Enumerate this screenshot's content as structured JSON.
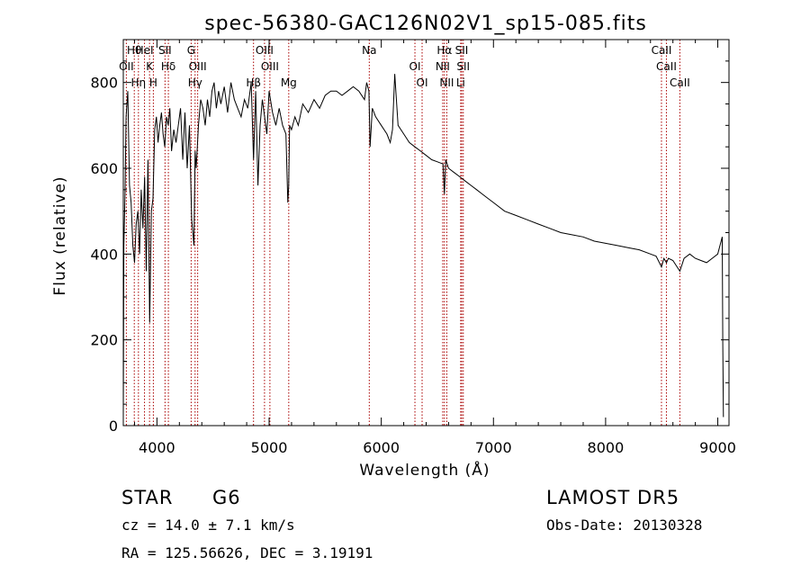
{
  "chart_data": {
    "type": "line",
    "title": "spec-56380-GAC126N02V1_sp15-085.fits",
    "xlabel": "Wavelength (Å)",
    "ylabel": "Flux (relative)",
    "xlim": [
      3700,
      9100
    ],
    "ylim": [
      0,
      900
    ],
    "xticks": [
      4000,
      5000,
      6000,
      7000,
      8000,
      9000
    ],
    "yticks": [
      0,
      200,
      400,
      600,
      800
    ],
    "grid": false,
    "series": [
      {
        "x": [
          3700,
          3705,
          3715,
          3725,
          3740,
          3755,
          3770,
          3785,
          3800,
          3815,
          3830,
          3845,
          3860,
          3875,
          3890,
          3905,
          3920,
          3935,
          3950,
          3965,
          3980,
          3995,
          4010,
          4025,
          4040,
          4055,
          4070,
          4085,
          4100,
          4115,
          4130,
          4150,
          4170,
          4190,
          4210,
          4230,
          4250,
          4270,
          4290,
          4310,
          4330,
          4340,
          4350,
          4370,
          4390,
          4410,
          4430,
          4450,
          4470,
          4490,
          4510,
          4530,
          4550,
          4570,
          4600,
          4630,
          4660,
          4690,
          4720,
          4750,
          4780,
          4810,
          4840,
          4861,
          4880,
          4900,
          4920,
          4940,
          4960,
          4980,
          5000,
          5030,
          5060,
          5090,
          5120,
          5150,
          5167,
          5175,
          5183,
          5200,
          5230,
          5260,
          5300,
          5350,
          5400,
          5450,
          5500,
          5550,
          5600,
          5650,
          5700,
          5750,
          5800,
          5850,
          5870,
          5890,
          5900,
          5920,
          5950,
          6000,
          6050,
          6080,
          6100,
          6120,
          6150,
          6200,
          6250,
          6300,
          6350,
          6400,
          6450,
          6500,
          6550,
          6563,
          6575,
          6600,
          6650,
          6700,
          6750,
          6800,
          6850,
          6900,
          6950,
          7000,
          7100,
          7200,
          7300,
          7400,
          7500,
          7600,
          7700,
          7800,
          7900,
          8000,
          8100,
          8200,
          8300,
          8400,
          8450,
          8498,
          8520,
          8542,
          8560,
          8600,
          8662,
          8700,
          8750,
          8800,
          8850,
          8900,
          8950,
          9000,
          9020,
          9040,
          9045,
          9050
        ],
        "y": [
          20,
          420,
          540,
          720,
          780,
          560,
          520,
          420,
          380,
          470,
          500,
          400,
          550,
          460,
          580,
          360,
          620,
          240,
          500,
          530,
          690,
          720,
          660,
          700,
          730,
          680,
          650,
          720,
          700,
          740,
          640,
          690,
          660,
          700,
          740,
          620,
          730,
          600,
          700,
          480,
          420,
          640,
          600,
          700,
          760,
          740,
          700,
          760,
          720,
          780,
          800,
          740,
          780,
          750,
          790,
          730,
          800,
          760,
          740,
          720,
          760,
          740,
          800,
          620,
          780,
          560,
          700,
          760,
          720,
          680,
          780,
          730,
          700,
          740,
          700,
          680,
          520,
          560,
          700,
          690,
          720,
          700,
          750,
          730,
          760,
          740,
          770,
          780,
          780,
          770,
          780,
          790,
          780,
          760,
          800,
          780,
          650,
          740,
          720,
          700,
          680,
          660,
          690,
          820,
          700,
          680,
          660,
          650,
          640,
          630,
          620,
          615,
          610,
          540,
          620,
          600,
          590,
          580,
          570,
          560,
          550,
          540,
          530,
          520,
          500,
          490,
          480,
          470,
          460,
          450,
          445,
          440,
          430,
          425,
          420,
          415,
          410,
          400,
          395,
          370,
          390,
          380,
          390,
          385,
          360,
          390,
          400,
          390,
          385,
          380,
          390,
          400,
          420,
          440,
          190,
          20
        ]
      }
    ],
    "line_markers": [
      {
        "label": "Hθ",
        "wavelength": 3798
      },
      {
        "label": "OII",
        "wavelength": 3727
      },
      {
        "label": "Hη",
        "wavelength": 3835
      },
      {
        "label": "HeI",
        "wavelength": 3889
      },
      {
        "label": "K",
        "wavelength": 3934
      },
      {
        "label": "H",
        "wavelength": 3968
      },
      {
        "label": "SII",
        "wavelength": 4072
      },
      {
        "label": "Hδ",
        "wavelength": 4102
      },
      {
        "label": "Hγ",
        "wavelength": 4340
      },
      {
        "label": "G",
        "wavelength": 4305
      },
      {
        "label": "OIII",
        "wavelength": 4363
      },
      {
        "label": "Hβ",
        "wavelength": 4861
      },
      {
        "label": "OIII",
        "wavelength": 4959
      },
      {
        "label": "OIII",
        "wavelength": 5007
      },
      {
        "label": "Mg",
        "wavelength": 5175
      },
      {
        "label": "Na",
        "wavelength": 5893
      },
      {
        "label": "OI",
        "wavelength": 6300
      },
      {
        "label": "OI",
        "wavelength": 6364
      },
      {
        "label": "Hα",
        "wavelength": 6563
      },
      {
        "label": "NII",
        "wavelength": 6548
      },
      {
        "label": "NII",
        "wavelength": 6584
      },
      {
        "label": "SII",
        "wavelength": 6717
      },
      {
        "label": "SII",
        "wavelength": 6731
      },
      {
        "label": "Li",
        "wavelength": 6708
      },
      {
        "label": "CaII",
        "wavelength": 8498
      },
      {
        "label": "CaII",
        "wavelength": 8542
      },
      {
        "label": "CaII",
        "wavelength": 8662
      }
    ],
    "marker_color": "#aa0000"
  },
  "info": {
    "object_class": "STAR",
    "subclass": "G6",
    "redshift": "cz = 14.0 ± 7.1 km/s",
    "coordinates": "RA = 125.56626, DEC =   3.19191",
    "survey": "LAMOST DR5",
    "obs_date": "Obs-Date: 20130328"
  }
}
